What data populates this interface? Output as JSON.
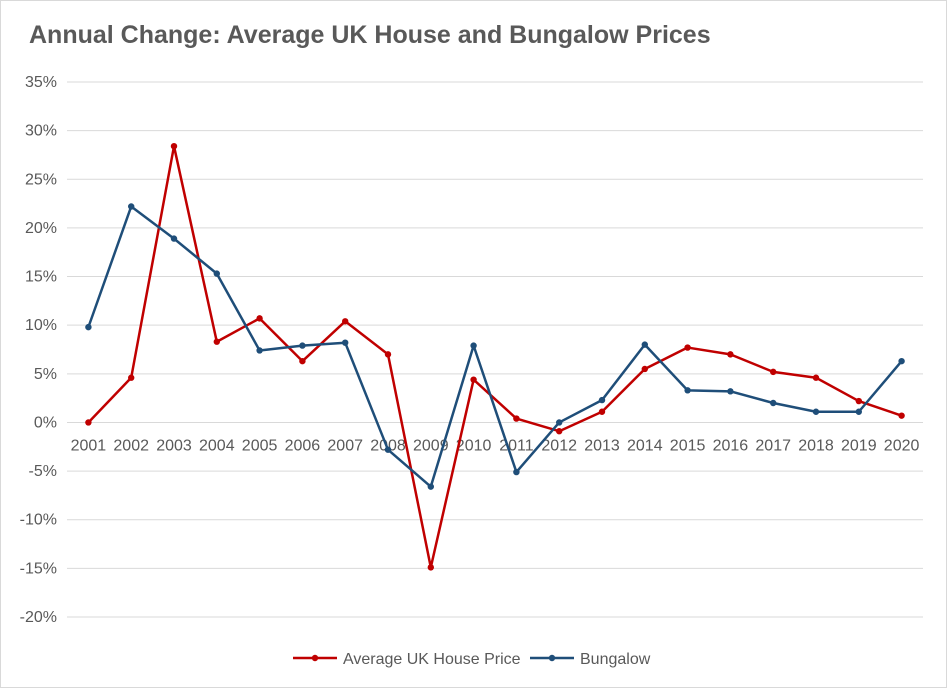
{
  "chart_data": {
    "type": "line",
    "title": "Annual Change: Average UK House and Bungalow Prices",
    "xlabel": "",
    "ylabel": "",
    "categories": [
      "2001",
      "2002",
      "2003",
      "2004",
      "2005",
      "2006",
      "2007",
      "2008",
      "2009",
      "2010",
      "2011",
      "2012",
      "2013",
      "2014",
      "2015",
      "2016",
      "2017",
      "2018",
      "2019",
      "2020"
    ],
    "ylim": [
      -20,
      35
    ],
    "yticks": [
      35,
      30,
      25,
      20,
      15,
      10,
      5,
      0,
      -5,
      -10,
      -15,
      -20
    ],
    "ytick_labels": [
      "35%",
      "30%",
      "25%",
      "20%",
      "15%",
      "10%",
      "5%",
      "0%",
      "-5%",
      "-10%",
      "-15%",
      "-20%"
    ],
    "grid": true,
    "legend": "bottom",
    "series": [
      {
        "name": "Average UK House Price",
        "color": "#C00000",
        "values": [
          0,
          4.6,
          28.4,
          8.3,
          10.7,
          6.3,
          10.4,
          7.0,
          -14.9,
          4.4,
          0.4,
          -0.9,
          1.1,
          5.5,
          7.7,
          7.0,
          5.2,
          4.6,
          2.2,
          0.7
        ]
      },
      {
        "name": "Bungalow",
        "color": "#1F4E79",
        "values": [
          9.8,
          22.2,
          18.9,
          15.3,
          7.4,
          7.9,
          8.2,
          -2.8,
          -6.6,
          7.9,
          -5.1,
          0,
          2.3,
          8.0,
          3.3,
          3.2,
          2.0,
          1.1,
          1.1,
          6.3
        ]
      }
    ]
  }
}
